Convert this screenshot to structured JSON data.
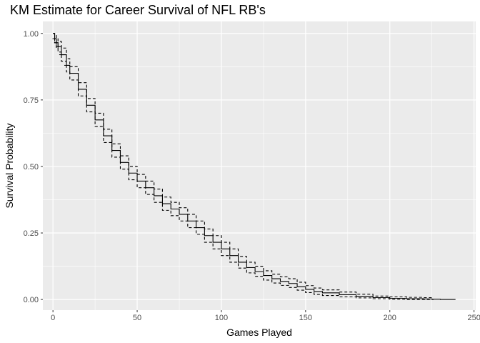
{
  "chart_data": {
    "type": "line",
    "title": "KM Estimate for Career Survival of NFL RB's",
    "xlabel": "Games Played",
    "ylabel": "Survival Probability",
    "xlim": [
      -6,
      251
    ],
    "ylim": [
      -0.04,
      1.045
    ],
    "xticks": [
      0,
      50,
      100,
      150,
      200,
      250
    ],
    "xtick_labels": [
      "0",
      "50",
      "100",
      "150",
      "200",
      "250"
    ],
    "yticks": [
      0,
      0.25,
      0.5,
      0.75,
      1.0
    ],
    "ytick_labels": [
      "0.00",
      "0.25",
      "0.50",
      "0.75",
      "1.00"
    ],
    "grid": true,
    "colors": {
      "panel": "#ebebeb",
      "grid": "#ffffff",
      "line": "#000000"
    },
    "series": [
      {
        "style": "solid",
        "x": [
          0,
          1,
          2,
          3,
          5,
          8,
          10,
          15,
          20,
          25,
          30,
          35,
          40,
          45,
          50,
          55,
          60,
          65,
          70,
          75,
          80,
          85,
          90,
          95,
          100,
          105,
          110,
          115,
          120,
          125,
          130,
          135,
          140,
          145,
          150,
          155,
          160,
          170,
          180,
          190,
          200,
          210,
          220,
          225,
          230,
          239
        ],
        "y": [
          1.0,
          0.98,
          0.965,
          0.95,
          0.92,
          0.88,
          0.85,
          0.79,
          0.73,
          0.675,
          0.615,
          0.56,
          0.515,
          0.475,
          0.445,
          0.42,
          0.39,
          0.36,
          0.34,
          0.32,
          0.295,
          0.27,
          0.24,
          0.215,
          0.19,
          0.165,
          0.14,
          0.12,
          0.105,
          0.09,
          0.078,
          0.068,
          0.06,
          0.048,
          0.038,
          0.03,
          0.025,
          0.018,
          0.012,
          0.007,
          0.004,
          0.003,
          0.002,
          0.001,
          0.0,
          0.0
        ]
      },
      {
        "style": "dashed",
        "x": [
          0,
          1,
          2,
          3,
          5,
          8,
          10,
          15,
          20,
          25,
          30,
          35,
          40,
          45,
          50,
          55,
          60,
          65,
          70,
          75,
          80,
          85,
          90,
          95,
          100,
          105,
          110,
          115,
          120,
          125,
          130,
          135,
          140,
          145,
          150,
          155,
          160,
          170,
          180,
          190,
          200,
          210,
          220,
          226
        ],
        "y": [
          1.0,
          0.995,
          0.985,
          0.97,
          0.945,
          0.905,
          0.875,
          0.815,
          0.755,
          0.7,
          0.64,
          0.585,
          0.54,
          0.5,
          0.47,
          0.445,
          0.415,
          0.385,
          0.365,
          0.345,
          0.32,
          0.295,
          0.265,
          0.24,
          0.215,
          0.19,
          0.162,
          0.14,
          0.125,
          0.108,
          0.095,
          0.085,
          0.078,
          0.065,
          0.052,
          0.043,
          0.036,
          0.028,
          0.02,
          0.013,
          0.01,
          0.008,
          0.007,
          0.006
        ]
      },
      {
        "style": "dashed",
        "x": [
          0,
          1,
          2,
          3,
          5,
          8,
          10,
          15,
          20,
          25,
          30,
          35,
          40,
          45,
          50,
          55,
          60,
          65,
          70,
          75,
          80,
          85,
          90,
          95,
          100,
          105,
          110,
          115,
          120,
          125,
          130,
          135,
          140,
          145,
          150,
          155,
          160,
          170,
          180,
          190,
          200,
          210,
          220,
          226
        ],
        "y": [
          1.0,
          0.965,
          0.945,
          0.93,
          0.895,
          0.855,
          0.825,
          0.765,
          0.705,
          0.65,
          0.59,
          0.535,
          0.49,
          0.45,
          0.42,
          0.395,
          0.365,
          0.335,
          0.315,
          0.295,
          0.27,
          0.245,
          0.215,
          0.19,
          0.165,
          0.14,
          0.118,
          0.1,
          0.087,
          0.073,
          0.062,
          0.053,
          0.045,
          0.035,
          0.026,
          0.019,
          0.015,
          0.01,
          0.006,
          0.003,
          0.001,
          0.0,
          0.0,
          0.0
        ]
      }
    ]
  }
}
